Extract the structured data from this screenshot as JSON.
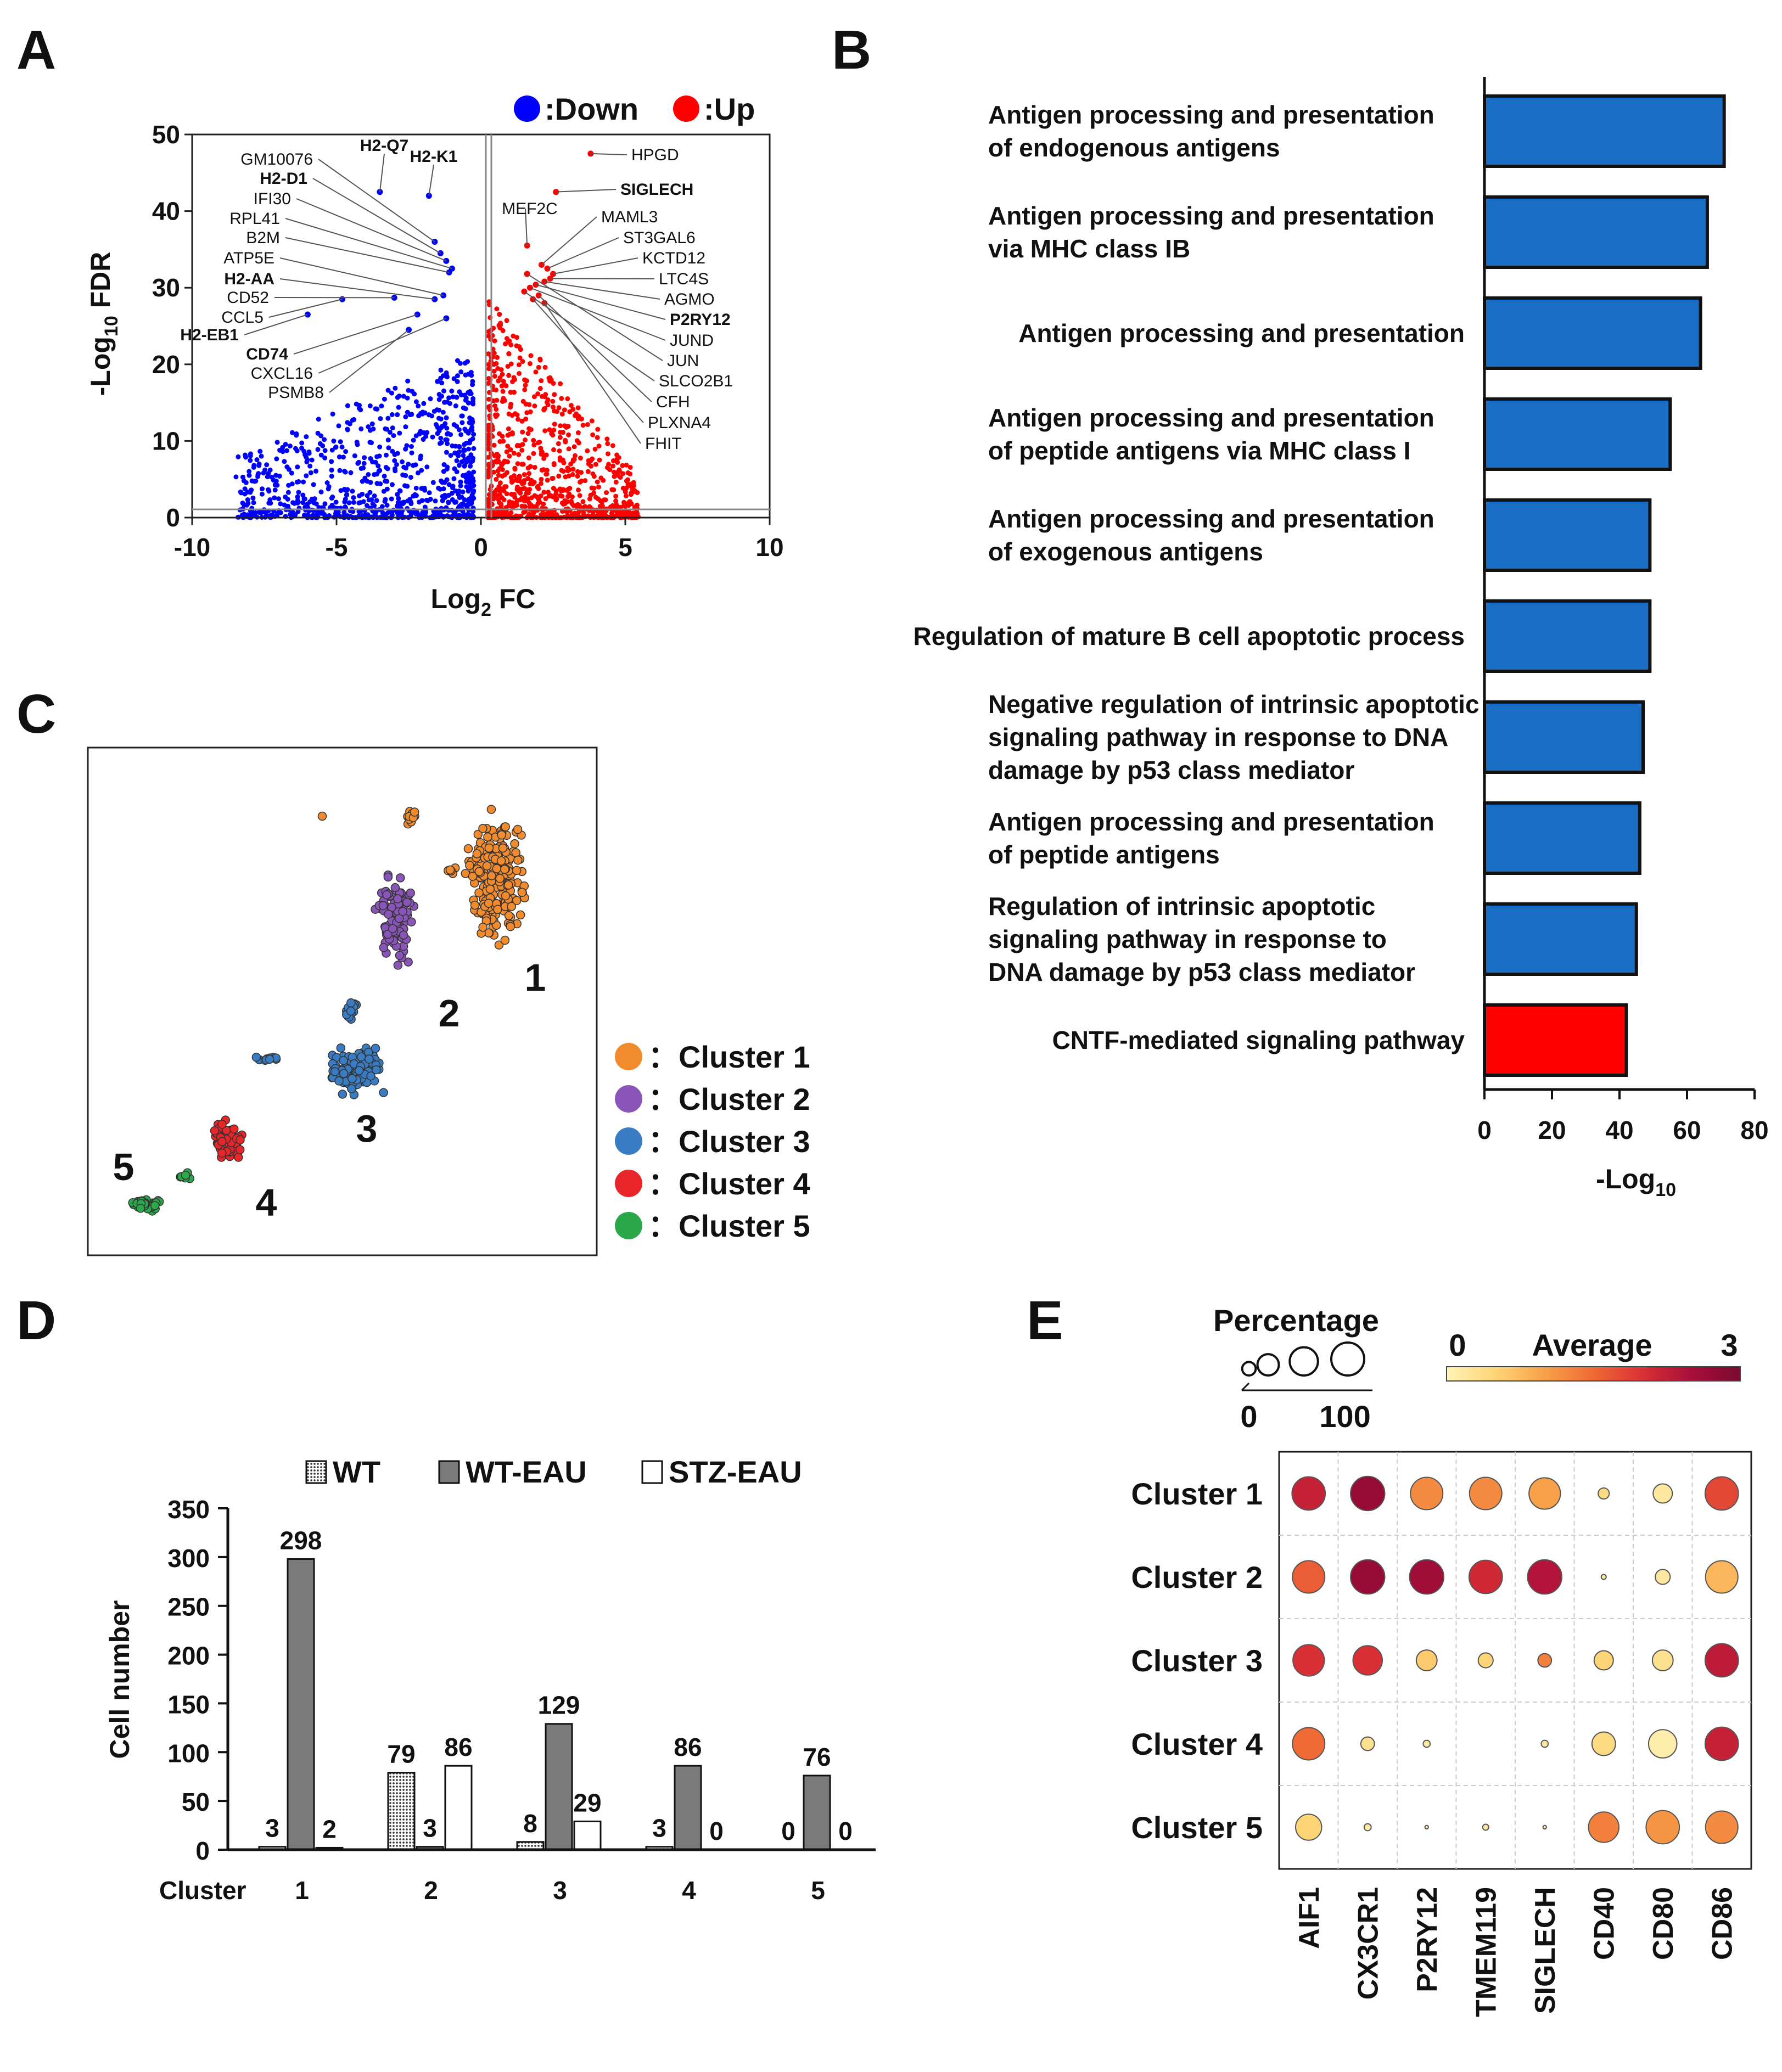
{
  "panels": {
    "a": "A",
    "b": "B",
    "c": "C",
    "d": "D",
    "e": "E"
  },
  "chart_data": [
    {
      "type": "scatter",
      "panel": "A",
      "legend": [
        {
          "label": ":Down",
          "color": "#0000ff"
        },
        {
          "label": ":Up",
          "color": "#ff0000"
        }
      ],
      "xlabel_main": "Log",
      "xlabel_sub": "2",
      "xlabel_tail": " FC",
      "ylabel_main": "-Log",
      "ylabel_sub": "10",
      "ylabel_tail": " FDR",
      "xlim": [
        -10,
        10
      ],
      "ylim": [
        0,
        50
      ],
      "xticks": [
        -10,
        -5,
        0,
        5,
        10
      ],
      "xtick_labels": [
        "-10",
        "-5",
        "0",
        "5",
        "10"
      ],
      "yticks": [
        0,
        10,
        20,
        30,
        40,
        50
      ],
      "ytick_labels": [
        "0",
        "10",
        "20",
        "30",
        "40",
        "50"
      ],
      "down_genes": [
        {
          "name": "H2-Q7",
          "bold": true,
          "x": -3.5,
          "y": 42.5
        },
        {
          "name": "H2-K1",
          "bold": true,
          "x": -1.8,
          "y": 42
        },
        {
          "name": "GM10076",
          "bold": false,
          "x": -1.6,
          "y": 36
        },
        {
          "name": "H2-D1",
          "bold": true,
          "x": -1.4,
          "y": 34.5
        },
        {
          "name": "IFI30",
          "bold": false,
          "x": -1.2,
          "y": 33.5
        },
        {
          "name": "RPL41",
          "bold": false,
          "x": -1.0,
          "y": 32.5
        },
        {
          "name": "B2M",
          "bold": false,
          "x": -1.1,
          "y": 32
        },
        {
          "name": "ATP5E",
          "bold": false,
          "x": -1.3,
          "y": 29
        },
        {
          "name": "H2-AA",
          "bold": true,
          "x": -1.6,
          "y": 28.5
        },
        {
          "name": "CD52",
          "bold": false,
          "x": -3.0,
          "y": 28.7
        },
        {
          "name": "CCL5",
          "bold": false,
          "x": -4.8,
          "y": 28.5
        },
        {
          "name": "H2-EB1",
          "bold": true,
          "x": -6.0,
          "y": 26.5
        },
        {
          "name": "CD74",
          "bold": true,
          "x": -2.2,
          "y": 26.5
        },
        {
          "name": "CXCL16",
          "bold": false,
          "x": -1.2,
          "y": 26
        },
        {
          "name": "PSMB8",
          "bold": false,
          "x": -2.5,
          "y": 24.5
        }
      ],
      "up_genes": [
        {
          "name": "HPGD",
          "bold": false,
          "x": 3.8,
          "y": 47.5
        },
        {
          "name": "SIGLECH",
          "bold": true,
          "x": 2.6,
          "y": 42.5
        },
        {
          "name": "MEF2C",
          "bold": false,
          "x": 1.6,
          "y": 35.5
        },
        {
          "name": "MAML3",
          "bold": false,
          "x": 2.1,
          "y": 33
        },
        {
          "name": "ST3GAL6",
          "bold": false,
          "x": 2.3,
          "y": 32.5
        },
        {
          "name": "KCTD12",
          "bold": false,
          "x": 2.5,
          "y": 31.8
        },
        {
          "name": "LTC4S",
          "bold": false,
          "x": 2.4,
          "y": 31.2
        },
        {
          "name": "AGMO",
          "bold": false,
          "x": 2.2,
          "y": 30.8
        },
        {
          "name": "P2RY12",
          "bold": true,
          "x": 1.9,
          "y": 30.4
        },
        {
          "name": "JUND",
          "bold": false,
          "x": 1.7,
          "y": 30
        },
        {
          "name": "JUN",
          "bold": false,
          "x": 1.6,
          "y": 31.8
        },
        {
          "name": "SLCO2B1",
          "bold": false,
          "x": 1.5,
          "y": 29.5
        },
        {
          "name": "CFH",
          "bold": false,
          "x": 2.0,
          "y": 29
        },
        {
          "name": "PLXNA4",
          "bold": false,
          "x": 1.8,
          "y": 28.5
        },
        {
          "name": "FHIT",
          "bold": false,
          "x": 2.2,
          "y": 28
        }
      ]
    },
    {
      "type": "bar",
      "panel": "B",
      "orientation": "horizontal",
      "categories": [
        [
          "Antigen processing and presentation",
          "of endogenous antigens"
        ],
        [
          "Antigen processing and presentation",
          "via MHC class IB"
        ],
        [
          "Antigen processing and presentation"
        ],
        [
          "Antigen processing and presentation",
          "of peptide antigens via MHC class I"
        ],
        [
          "Antigen processing and presentation",
          "of exogenous antigens"
        ],
        [
          "Regulation of mature B cell apoptotic process"
        ],
        [
          "Negative regulation of intrinsic apoptotic",
          "signaling pathway in response to DNA",
          "damage by p53 class mediator"
        ],
        [
          "Antigen processing and presentation",
          "of peptide antigens"
        ],
        [
          "Regulation of intrinsic apoptotic",
          "signaling pathway in response to",
          "DNA damage by p53 class mediator"
        ],
        [
          "CNTF-mediated signaling pathway"
        ]
      ],
      "values": [
        71,
        66,
        64,
        55,
        49,
        49,
        47,
        46,
        45,
        42
      ],
      "colors": [
        "#1a6ec6",
        "#1a6ec6",
        "#1a6ec6",
        "#1a6ec6",
        "#1a6ec6",
        "#1a6ec6",
        "#1a6ec6",
        "#1a6ec6",
        "#1a6ec6",
        "#ff0000"
      ],
      "xlim": [
        0,
        80
      ],
      "xticks": [
        0,
        20,
        40,
        60,
        80
      ],
      "xtick_labels": [
        "0",
        "20",
        "40",
        "60",
        "80"
      ],
      "xlabel_main": "-Log",
      "xlabel_sub": "10"
    },
    {
      "type": "scatter",
      "panel": "C",
      "clusters": [
        {
          "label": "1",
          "legend": "：Cluster 1",
          "color": "#f28a2e"
        },
        {
          "label": "2",
          "legend": "：Cluster 2",
          "color": "#8a55b8"
        },
        {
          "label": "3",
          "legend": "：Cluster 3",
          "color": "#3a7cc4"
        },
        {
          "label": "4",
          "legend": "：Cluster 4",
          "color": "#e8262a"
        },
        {
          "label": "5",
          "legend": "：Cluster 5",
          "color": "#2aa84a"
        }
      ]
    },
    {
      "type": "bar",
      "panel": "D",
      "categories": [
        "1",
        "2",
        "3",
        "4",
        "5"
      ],
      "cluster_prefix": "Cluster",
      "series": [
        {
          "name": "WT",
          "values": [
            3,
            79,
            8,
            3,
            0
          ],
          "fill": "#bbbbbb"
        },
        {
          "name": "WT-EAU",
          "values": [
            298,
            3,
            129,
            86,
            76
          ],
          "fill": "#7a7a7a"
        },
        {
          "name": "STZ-EAU",
          "values": [
            2,
            86,
            29,
            0,
            0
          ],
          "fill": "#ffffff"
        }
      ],
      "value_labels": [
        [
          "3",
          "298",
          "2"
        ],
        [
          "79",
          "3",
          "86"
        ],
        [
          "8",
          "129",
          "29"
        ],
        [
          "3",
          "86",
          "0"
        ],
        [
          "0",
          "76",
          "0"
        ]
      ],
      "ylabel": "Cell number",
      "ylim": [
        0,
        350
      ],
      "yticks": [
        0,
        50,
        100,
        150,
        200,
        250,
        300,
        350
      ],
      "ytick_labels": [
        "0",
        "50",
        "100",
        "150",
        "200",
        "250",
        "300",
        "350"
      ]
    },
    {
      "type": "heatmap",
      "subtype": "dot",
      "panel": "E",
      "rows": [
        "Cluster 1",
        "Cluster 2",
        "Cluster 3",
        "Cluster 4",
        "Cluster 5"
      ],
      "columns": [
        "AIF1",
        "CX3CR1",
        "P2RY12",
        "TMEM119",
        "SIGLECH",
        "CD40",
        "CD80",
        "CD86"
      ],
      "percentage": [
        [
          90,
          95,
          85,
          85,
          80,
          10,
          30,
          90
        ],
        [
          85,
          95,
          95,
          90,
          95,
          2,
          18,
          85
        ],
        [
          80,
          70,
          35,
          18,
          15,
          30,
          35,
          90
        ],
        [
          85,
          15,
          4,
          0,
          4,
          45,
          65,
          90
        ],
        [
          55,
          4,
          1,
          3,
          1,
          75,
          90,
          85
        ]
      ],
      "average": [
        [
          2.2,
          2.7,
          1.2,
          1.2,
          1.0,
          0.4,
          0.2,
          1.8
        ],
        [
          1.6,
          2.7,
          2.6,
          2.1,
          2.4,
          0.2,
          0.2,
          0.8
        ],
        [
          2.0,
          2.0,
          0.6,
          0.5,
          1.3,
          0.5,
          0.3,
          2.3
        ],
        [
          1.5,
          0.3,
          0.2,
          0.0,
          0.2,
          0.4,
          0.1,
          2.2
        ],
        [
          0.5,
          0.2,
          0.1,
          0.2,
          0.1,
          1.3,
          1.1,
          1.2
        ]
      ],
      "size_legend_title": "Percentage",
      "size_legend_min": "0",
      "size_legend_max": "100",
      "color_legend_title": "Average",
      "color_legend_min": "0",
      "color_legend_max": "3",
      "colorscale": [
        "#fff3b8",
        "#fdd576",
        "#f8a149",
        "#ef6a35",
        "#d93035",
        "#a80e3a",
        "#7a0a2f"
      ]
    }
  ]
}
